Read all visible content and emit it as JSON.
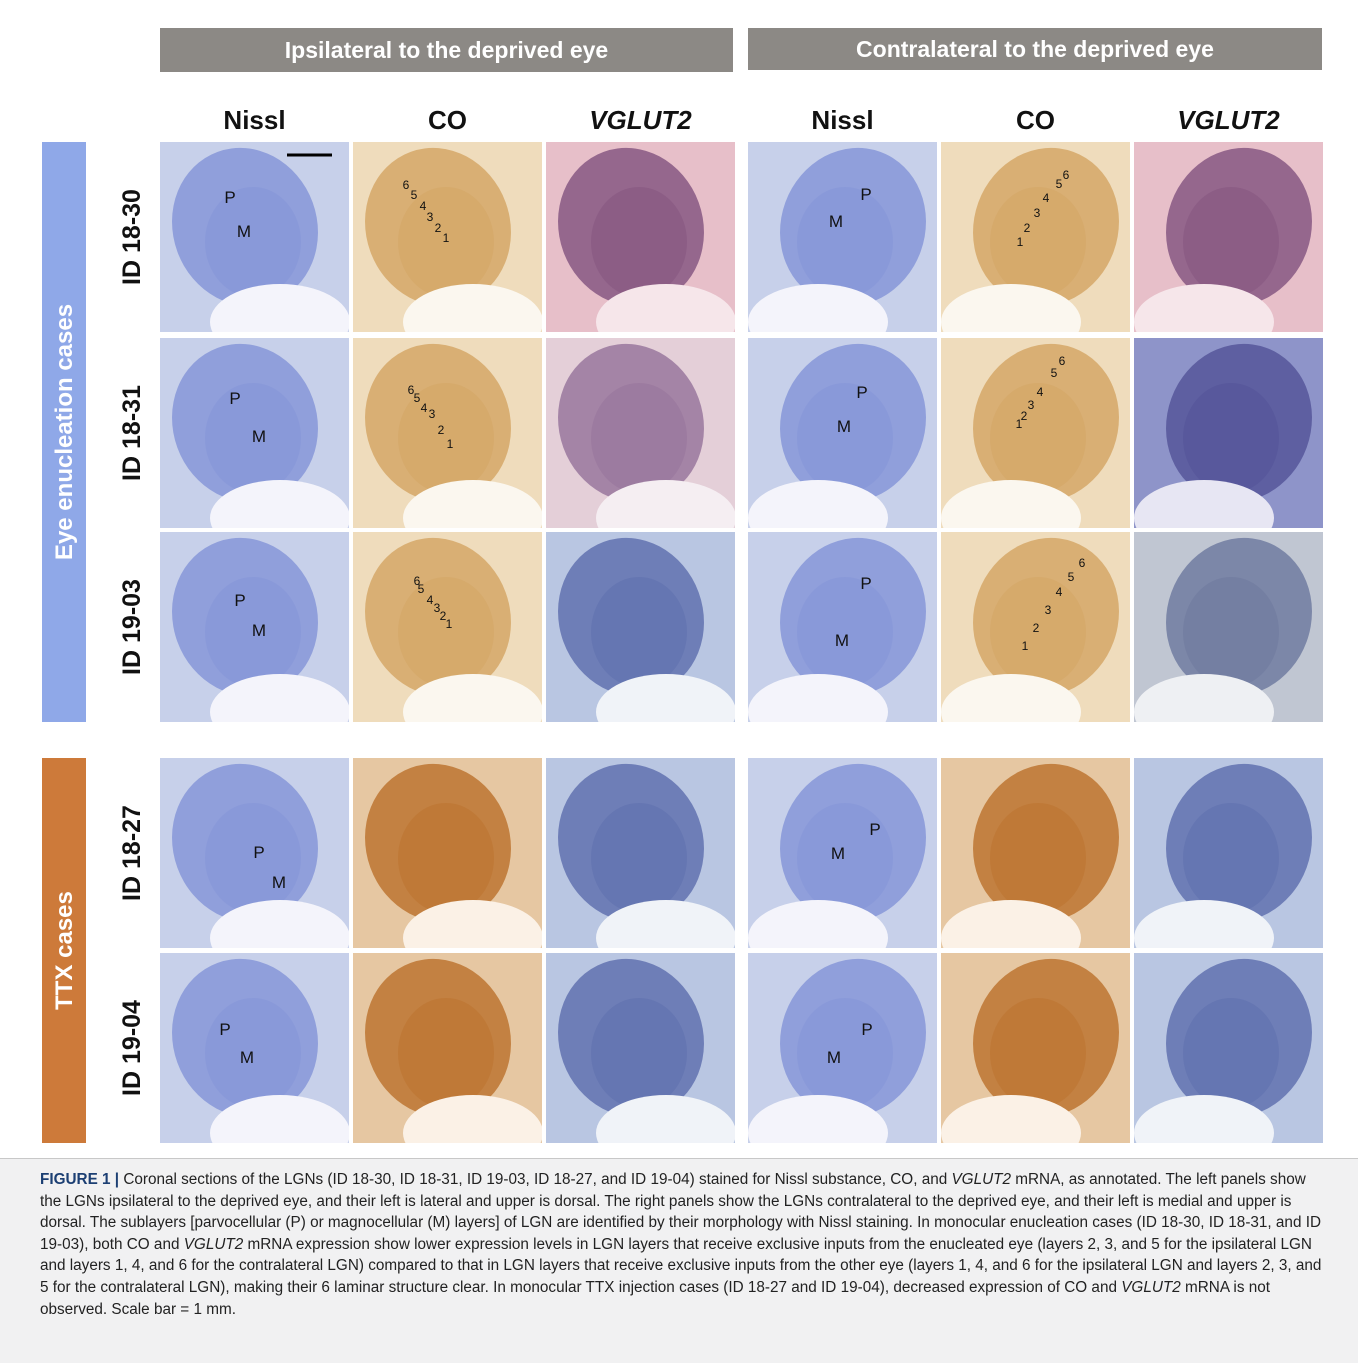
{
  "header_bars": [
    "Ipsilateral to the deprived eye",
    "Contralateral to the deprived eye"
  ],
  "column_headers": [
    "Nissl",
    "CO",
    "VGLUT2",
    "Nissl",
    "CO",
    "VGLUT2"
  ],
  "groups": [
    {
      "label": "Eye enucleation cases",
      "color": "#8fa8e8",
      "rows": [
        {
          "id": "ID 18-30",
          "panels": [
            [
              "P",
              "M"
            ],
            [
              "6",
              "5",
              "4",
              "3",
              "2",
              "1"
            ],
            [],
            [
              "P",
              "M"
            ],
            [
              "1",
              "2",
              "3",
              "4",
              "5",
              "6"
            ],
            []
          ]
        },
        {
          "id": "ID 18-31",
          "panels": [
            [
              "P",
              "M"
            ],
            [
              "6",
              "5",
              "4",
              "3",
              "2",
              "1"
            ],
            [],
            [
              "P",
              "M"
            ],
            [
              "1",
              "2",
              "3",
              "4",
              "5",
              "6"
            ],
            []
          ]
        },
        {
          "id": "ID 19-03",
          "panels": [
            [
              "P",
              "M"
            ],
            [
              "6",
              "5",
              "4",
              "3",
              "2",
              "1"
            ],
            [],
            [
              "P",
              "M"
            ],
            [
              "1",
              "2",
              "3",
              "4",
              "5",
              "6"
            ],
            []
          ]
        }
      ]
    },
    {
      "label": "TTX cases",
      "color": "#cd7a3a",
      "rows": [
        {
          "id": "ID 18-27",
          "panels": [
            [
              "P",
              "M"
            ],
            [],
            [],
            [
              "P",
              "M"
            ],
            [],
            []
          ]
        },
        {
          "id": "ID 19-04",
          "panels": [
            [
              "P",
              "M"
            ],
            [],
            [],
            [
              "P",
              "M"
            ],
            [],
            []
          ]
        }
      ]
    }
  ],
  "caption": {
    "label": "FIGURE 1 |",
    "segments": [
      {
        "text": " Coronal sections of the LGNs (ID 18-30, ID 18-31, ID 19-03, ID 18-27, and ID 19-04) stained for Nissl substance, CO, and "
      },
      {
        "text": "VGLUT2",
        "italic": true
      },
      {
        "text": " mRNA, as annotated. The left panels show the LGNs ipsilateral to the deprived eye, and their left is lateral and upper is dorsal. The right panels show the LGNs contralateral to the deprived eye, and their left is medial and upper is dorsal. The sublayers [parvocellular (P) or magnocellular (M) layers] of LGN are identified by their morphology with Nissl staining. In monocular enucleation cases (ID 18-30, ID 18-31, and ID 19-03), both CO and "
      },
      {
        "text": "VGLUT2",
        "italic": true
      },
      {
        "text": " mRNA expression show lower expression levels in LGN layers that receive exclusive inputs from the enucleated eye (layers 2, 3, and 5 for the ipsilateral LGN and layers 1, 4, and 6 for the contralateral LGN) compared to that in LGN layers that receive exclusive inputs from the other eye (layers 1, 4, and 6 for the ipsilateral LGN and layers 2, 3, and 5 for the contralateral LGN), making their 6 laminar structure clear. In monocular TTX injection cases (ID 18-27 and ID 19-04), decreased expression of CO and "
      },
      {
        "text": "VGLUT2",
        "italic": true
      },
      {
        "text": " mRNA is not observed. Scale bar = 1 mm."
      }
    ]
  }
}
